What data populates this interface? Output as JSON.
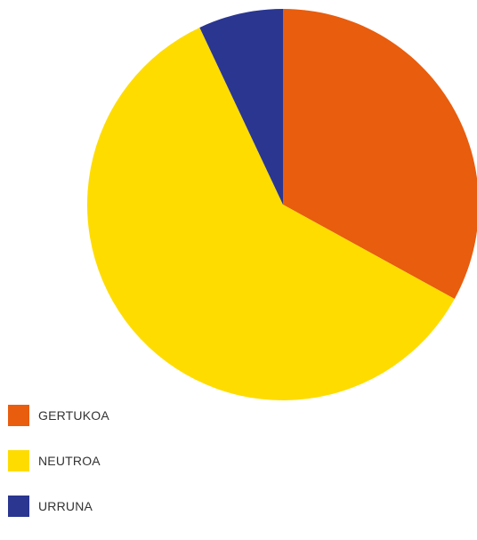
{
  "chart_data": {
    "type": "pie",
    "title": "",
    "categories": [
      "GERTUKOA",
      "NEUTROA",
      "URRUNA"
    ],
    "values": [
      33,
      60,
      7
    ],
    "unit": "%",
    "colors": [
      "#e85d0e",
      "#ffdc00",
      "#2a3690"
    ],
    "start_angle_deg": 0,
    "direction": "clockwise",
    "legend": "bottom-left"
  }
}
